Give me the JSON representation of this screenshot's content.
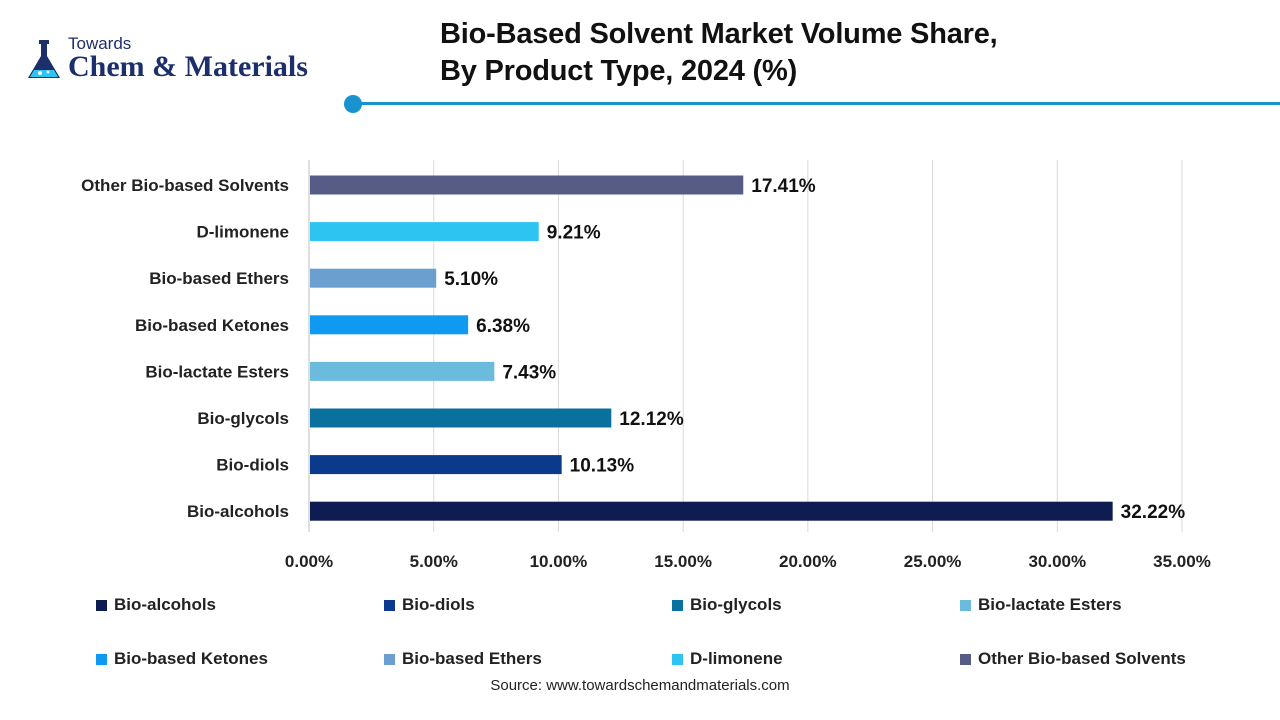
{
  "brand": {
    "towards": "Towards",
    "name": "Chem & Materials",
    "accent_color": "#1993cf",
    "logo_color": "#1c2f6b"
  },
  "title": {
    "line1": "Bio-Based Solvent Market Volume Share,",
    "line2": "By Product Type, 2024 (%)"
  },
  "chart_data": {
    "type": "bar",
    "orientation": "horizontal",
    "title": "Bio-Based Solvent Market Volume Share, By Product Type, 2024 (%)",
    "xlabel": "",
    "ylabel": "",
    "xlim": [
      0,
      35
    ],
    "x_ticks": [
      0,
      5,
      10,
      15,
      20,
      25,
      30,
      35
    ],
    "x_tick_labels": [
      "0.00%",
      "5.00%",
      "10.00%",
      "15.00%",
      "20.00%",
      "25.00%",
      "30.00%",
      "35.00%"
    ],
    "grid": true,
    "categories": [
      "Other Bio-based Solvents",
      "D-limonene",
      "Bio-based Ethers",
      "Bio-based Ketones",
      "Bio-lactate Esters",
      "Bio-glycols",
      "Bio-diols",
      "Bio-alcohols"
    ],
    "values": [
      17.41,
      9.21,
      5.1,
      6.38,
      7.43,
      12.12,
      10.13,
      32.22
    ],
    "value_labels": [
      "17.41%",
      "9.21%",
      "5.10%",
      "6.38%",
      "7.43%",
      "12.12%",
      "10.13%",
      "32.22%"
    ],
    "colors": [
      "#565c85",
      "#2ec4f2",
      "#6b9fd0",
      "#0e9af0",
      "#6bbcdc",
      "#0a709e",
      "#0b3a8c",
      "#0e1c52"
    ]
  },
  "legend": [
    {
      "label": "Bio-alcohols",
      "color": "#0e1c52"
    },
    {
      "label": "Bio-diols",
      "color": "#0b3a8c"
    },
    {
      "label": "Bio-glycols",
      "color": "#0a709e"
    },
    {
      "label": "Bio-lactate Esters",
      "color": "#6bbcdc"
    },
    {
      "label": "Bio-based Ketones",
      "color": "#0e9af0"
    },
    {
      "label": "Bio-based Ethers",
      "color": "#6b9fd0"
    },
    {
      "label": "D-limonene",
      "color": "#2ec4f2"
    },
    {
      "label": "Other Bio-based Solvents",
      "color": "#565c85"
    }
  ],
  "source": "Source: www.towardschemandmaterials.com"
}
